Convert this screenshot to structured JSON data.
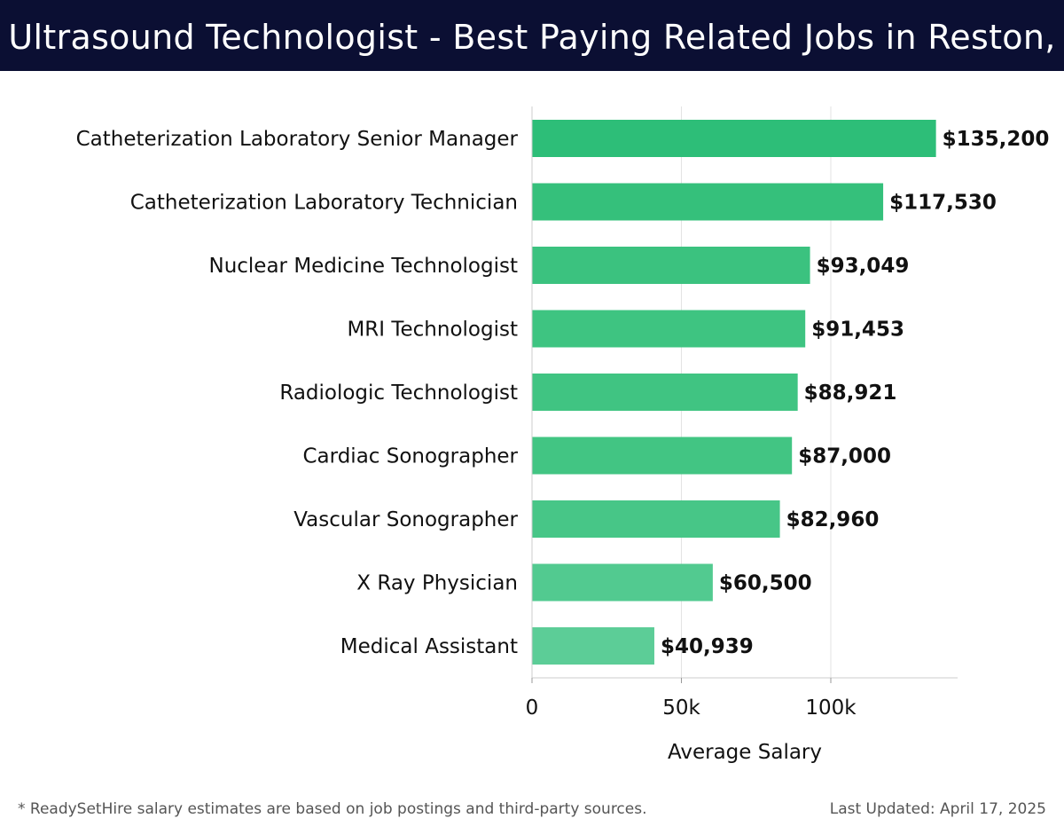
{
  "header": {
    "title": "Ultrasound Technologist - Best Paying Related Jobs in Reston, VA"
  },
  "chart_data": {
    "type": "bar",
    "orientation": "horizontal",
    "title": "Ultrasound Technologist - Best Paying Related Jobs in Reston, VA",
    "xlabel": "Average Salary",
    "ylabel": "",
    "xlim": [
      0,
      142000
    ],
    "xticks": [
      0,
      50000,
      100000
    ],
    "xtick_labels": [
      "0",
      "50k",
      "100k"
    ],
    "grid": true,
    "categories": [
      "Catheterization Laboratory Senior Manager",
      "Catheterization Laboratory Technician",
      "Nuclear Medicine Technologist",
      "MRI Technologist",
      "Radiologic Technologist",
      "Cardiac Sonographer",
      "Vascular Sonographer",
      "X Ray Physician",
      "Medical Assistant"
    ],
    "values": [
      135200,
      117530,
      93049,
      91453,
      88921,
      87000,
      82960,
      60500,
      40939
    ],
    "value_labels": [
      "$135,200",
      "$117,530",
      "$93,049",
      "$91,453",
      "$88,921",
      "$87,000",
      "$82,960",
      "$60,500",
      "$40,939"
    ],
    "bar_colors": [
      "#2dbe78",
      "#35c07b",
      "#3bc27f",
      "#3ec481",
      "#40c482",
      "#42c583",
      "#47c687",
      "#52ca90",
      "#5ccd97"
    ]
  },
  "footer": {
    "note": "* ReadySetHire salary estimates are based on job postings and third-party sources.",
    "updated": "Last Updated: April 17, 2025"
  },
  "colors": {
    "header_bg": "#0b0f33",
    "grid": "#e3e3e3",
    "axis": "#cccccc"
  }
}
